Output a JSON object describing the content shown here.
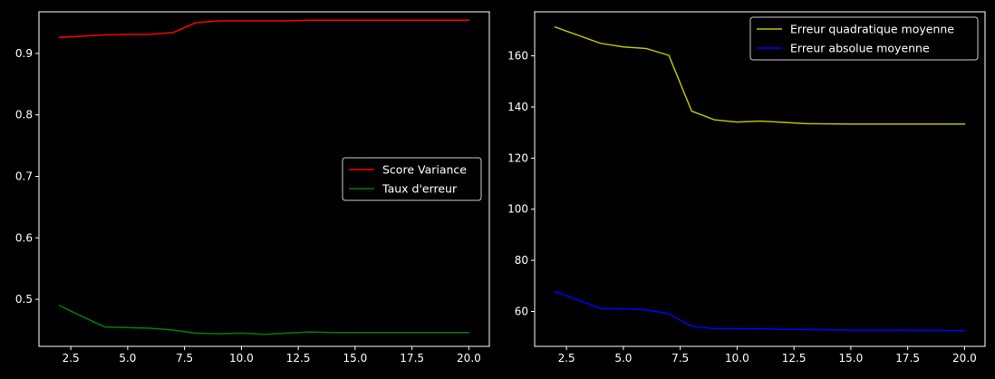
{
  "chart_data": [
    {
      "type": "line",
      "title": "",
      "xlabel": "",
      "ylabel": "",
      "xlim": [
        1.1,
        20.9
      ],
      "ylim": [
        0.4235,
        0.9677
      ],
      "xticks": [
        2.5,
        5.0,
        7.5,
        10.0,
        12.5,
        15.0,
        17.5,
        20.0
      ],
      "xtick_labels": [
        "2.5",
        "5.0",
        "7.5",
        "10.0",
        "12.5",
        "15.0",
        "17.5",
        "20.0"
      ],
      "yticks": [
        0.5,
        0.6,
        0.7,
        0.8,
        0.9
      ],
      "ytick_labels": [
        "0.5",
        "0.6",
        "0.7",
        "0.8",
        "0.9"
      ],
      "legend": "center-right",
      "grid": false,
      "x": [
        2,
        3,
        4,
        5,
        6,
        7,
        8,
        9,
        10,
        11,
        12,
        13,
        14,
        15,
        16,
        17,
        18,
        19,
        20
      ],
      "series": [
        {
          "name": "Score Variance",
          "color": "#ff0000",
          "values": [
            0.926,
            0.928,
            0.93,
            0.931,
            0.931,
            0.934,
            0.95,
            0.953,
            0.953,
            0.953,
            0.953,
            0.954,
            0.954,
            0.954,
            0.954,
            0.954,
            0.954,
            0.954,
            0.954
          ]
        },
        {
          "name": "Taux d'erreur",
          "color": "#008000",
          "values": [
            0.49,
            0.472,
            0.455,
            0.454,
            0.453,
            0.45,
            0.445,
            0.444,
            0.445,
            0.443,
            0.445,
            0.447,
            0.446,
            0.446,
            0.446,
            0.446,
            0.446,
            0.446,
            0.446
          ]
        }
      ]
    },
    {
      "type": "line",
      "title": "",
      "xlabel": "",
      "ylabel": "",
      "xlim": [
        1.1,
        20.9
      ],
      "ylim": [
        46.34,
        177.25
      ],
      "xticks": [
        2.5,
        5.0,
        7.5,
        10.0,
        12.5,
        15.0,
        17.5,
        20.0
      ],
      "xtick_labels": [
        "2.5",
        "5.0",
        "7.5",
        "10.0",
        "12.5",
        "15.0",
        "17.5",
        "20.0"
      ],
      "yticks": [
        60,
        80,
        100,
        120,
        140,
        160
      ],
      "ytick_labels": [
        "60",
        "80",
        "100",
        "120",
        "140",
        "160"
      ],
      "legend": "top-right",
      "grid": false,
      "x": [
        2,
        3,
        4,
        5,
        6,
        7,
        8,
        9,
        10,
        11,
        12,
        13,
        14,
        15,
        16,
        17,
        18,
        19,
        20
      ],
      "series": [
        {
          "name": "Erreur quadratique moyenne",
          "color": "#bfbf00",
          "values": [
            171.3,
            168.1,
            164.9,
            163.5,
            162.9,
            160.2,
            138.4,
            135.0,
            134.1,
            134.5,
            134.0,
            133.5,
            133.4,
            133.3,
            133.3,
            133.3,
            133.3,
            133.3,
            133.3
          ]
        },
        {
          "name": "Erreur absolue moyenne",
          "color": "#0000ff",
          "values": [
            67.8,
            64.5,
            61.2,
            61.0,
            60.6,
            59.1,
            54.2,
            53.3,
            53.3,
            53.2,
            53.0,
            52.9,
            52.8,
            52.7,
            52.7,
            52.7,
            52.6,
            52.6,
            52.5
          ]
        }
      ]
    }
  ]
}
